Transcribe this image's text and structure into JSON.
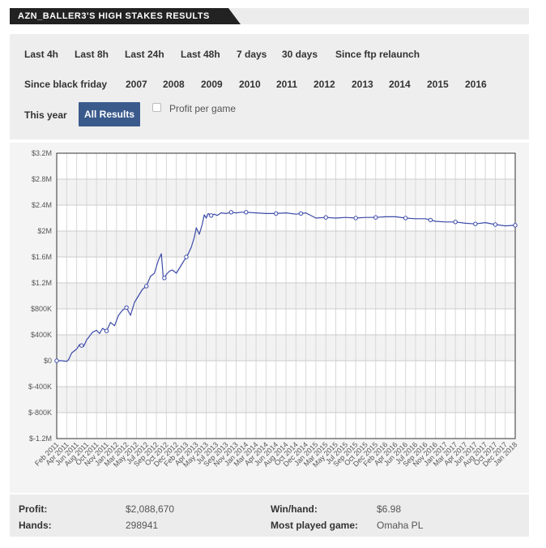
{
  "header": {
    "title": "AZN_BALLER3'S HIGH STAKES RESULTS"
  },
  "filters": [
    {
      "label": "Last 4h"
    },
    {
      "label": "Last 8h"
    },
    {
      "label": "Last 24h"
    },
    {
      "label": "Last 48h"
    },
    {
      "label": "7 days"
    },
    {
      "label": "30 days"
    },
    {
      "label": "Since ftp relaunch"
    },
    {
      "label": "Since black friday"
    },
    {
      "label": "2007"
    },
    {
      "label": "2008"
    },
    {
      "label": "2009"
    },
    {
      "label": "2010"
    },
    {
      "label": "2011"
    },
    {
      "label": "2012"
    },
    {
      "label": "2013"
    },
    {
      "label": "2014"
    },
    {
      "label": "2015"
    },
    {
      "label": "2016"
    },
    {
      "label": "This year"
    },
    {
      "label": "All Results",
      "active": true
    }
  ],
  "profit_per_game": {
    "label": "Profit per game",
    "checked": false
  },
  "stats": {
    "profit_label": "Profit:",
    "profit_value": "$2,088,670",
    "hands_label": "Hands:",
    "hands_value": "298941",
    "winhand_label": "Win/hand:",
    "winhand_value": "$6.98",
    "mostplayed_label": "Most played game:",
    "mostplayed_value": "Omaha PL"
  },
  "colors": {
    "line": "#3b4aa8",
    "accent": "#3a5a8c",
    "header": "#222222"
  },
  "chart_data": {
    "type": "line",
    "title": "",
    "xlabel": "",
    "ylabel": "",
    "ylim": [
      -1200000,
      3200000
    ],
    "yticks": [
      {
        "value": 3200000,
        "label": "$3.2M"
      },
      {
        "value": 2800000,
        "label": "$2.8M"
      },
      {
        "value": 2400000,
        "label": "$2.4M"
      },
      {
        "value": 2000000,
        "label": "$2M"
      },
      {
        "value": 1600000,
        "label": "$1.6M"
      },
      {
        "value": 1200000,
        "label": "$1.2M"
      },
      {
        "value": 800000,
        "label": "$800K"
      },
      {
        "value": 400000,
        "label": "$400K"
      },
      {
        "value": 0,
        "label": "$0"
      },
      {
        "value": -400000,
        "label": "$-400K"
      },
      {
        "value": -800000,
        "label": "$-800K"
      },
      {
        "value": -1200000,
        "label": "$-1.2M"
      }
    ],
    "xticks": [
      "Feb 2011",
      "Apr 2011",
      "Jun 2011",
      "Aug 2011",
      "Oct 2011",
      "Nov 2011",
      "Jan 2012",
      "Mar 2012",
      "May 2012",
      "Jul 2012",
      "Sep 2012",
      "Oct 2012",
      "Dec 2012",
      "Feb 2013",
      "Apr 2013",
      "May 2013",
      "Jul 2013",
      "Sep 2013",
      "Nov 2013",
      "Jan 2014",
      "Mar 2014",
      "Apr 2014",
      "Jun 2014",
      "Aug 2014",
      "Oct 2014",
      "Dec 2014",
      "Jan 2015",
      "Mar 2015",
      "May 2015",
      "Jul 2015",
      "Sep 2015",
      "Oct 2015",
      "Dec 2015",
      "Feb 2016",
      "Apr 2016",
      "Jun 2016",
      "Jul 2016",
      "Sep 2016",
      "Nov 2016",
      "Jan 2017",
      "Mar 2017",
      "Apr 2017",
      "Jun 2017",
      "Aug 2017",
      "Oct 2017",
      "Dec 2017",
      "Jan 2018"
    ],
    "x_range": [
      0,
      46
    ],
    "series": [
      {
        "name": "",
        "x": [
          0,
          0.5,
          1,
          1.2,
          1.5,
          2,
          2.3,
          2.7,
          3,
          3.3,
          3.6,
          4,
          4.3,
          4.6,
          5,
          5.4,
          5.8,
          6.2,
          6.6,
          7,
          7.4,
          7.8,
          8.2,
          8.6,
          9,
          9.4,
          9.8,
          10.2,
          10.5,
          10.7,
          11,
          11.3,
          11.6,
          12,
          12.4,
          12.8,
          13.2,
          13.5,
          13.8,
          14,
          14.3,
          14.6,
          14.8,
          15,
          15.2,
          15.5,
          15.8,
          16.1,
          16.5,
          17,
          17.5,
          18,
          18.5,
          19,
          20,
          21,
          22,
          23,
          24,
          25,
          26,
          27,
          28,
          29,
          30,
          31,
          32,
          33,
          34,
          35,
          36,
          37,
          38,
          39,
          40,
          41,
          42,
          43,
          44,
          45,
          46
        ],
        "y": [
          0,
          0,
          -10000,
          20000,
          120000,
          180000,
          250000,
          220000,
          320000,
          380000,
          440000,
          470000,
          420000,
          500000,
          460000,
          590000,
          540000,
          700000,
          780000,
          820000,
          700000,
          900000,
          1000000,
          1100000,
          1150000,
          1300000,
          1350000,
          1550000,
          1650000,
          1250000,
          1330000,
          1380000,
          1400000,
          1350000,
          1450000,
          1550000,
          1650000,
          1750000,
          1900000,
          2050000,
          1950000,
          2100000,
          2250000,
          2200000,
          2270000,
          2240000,
          2260000,
          2240000,
          2280000,
          2270000,
          2290000,
          2280000,
          2290000,
          2290000,
          2280000,
          2270000,
          2270000,
          2280000,
          2260000,
          2280000,
          2200000,
          2210000,
          2200000,
          2210000,
          2200000,
          2210000,
          2210000,
          2220000,
          2220000,
          2200000,
          2190000,
          2190000,
          2150000,
          2140000,
          2140000,
          2120000,
          2110000,
          2130000,
          2100000,
          2080000,
          2089000
        ]
      }
    ],
    "markers_x": [
      0,
      2.5,
      5,
      7,
      9,
      10.8,
      13,
      15.5,
      17.5,
      19,
      22,
      24.5,
      27,
      30,
      32,
      35,
      37.5,
      40,
      42,
      44,
      46
    ],
    "grid": true,
    "legend": "none"
  }
}
